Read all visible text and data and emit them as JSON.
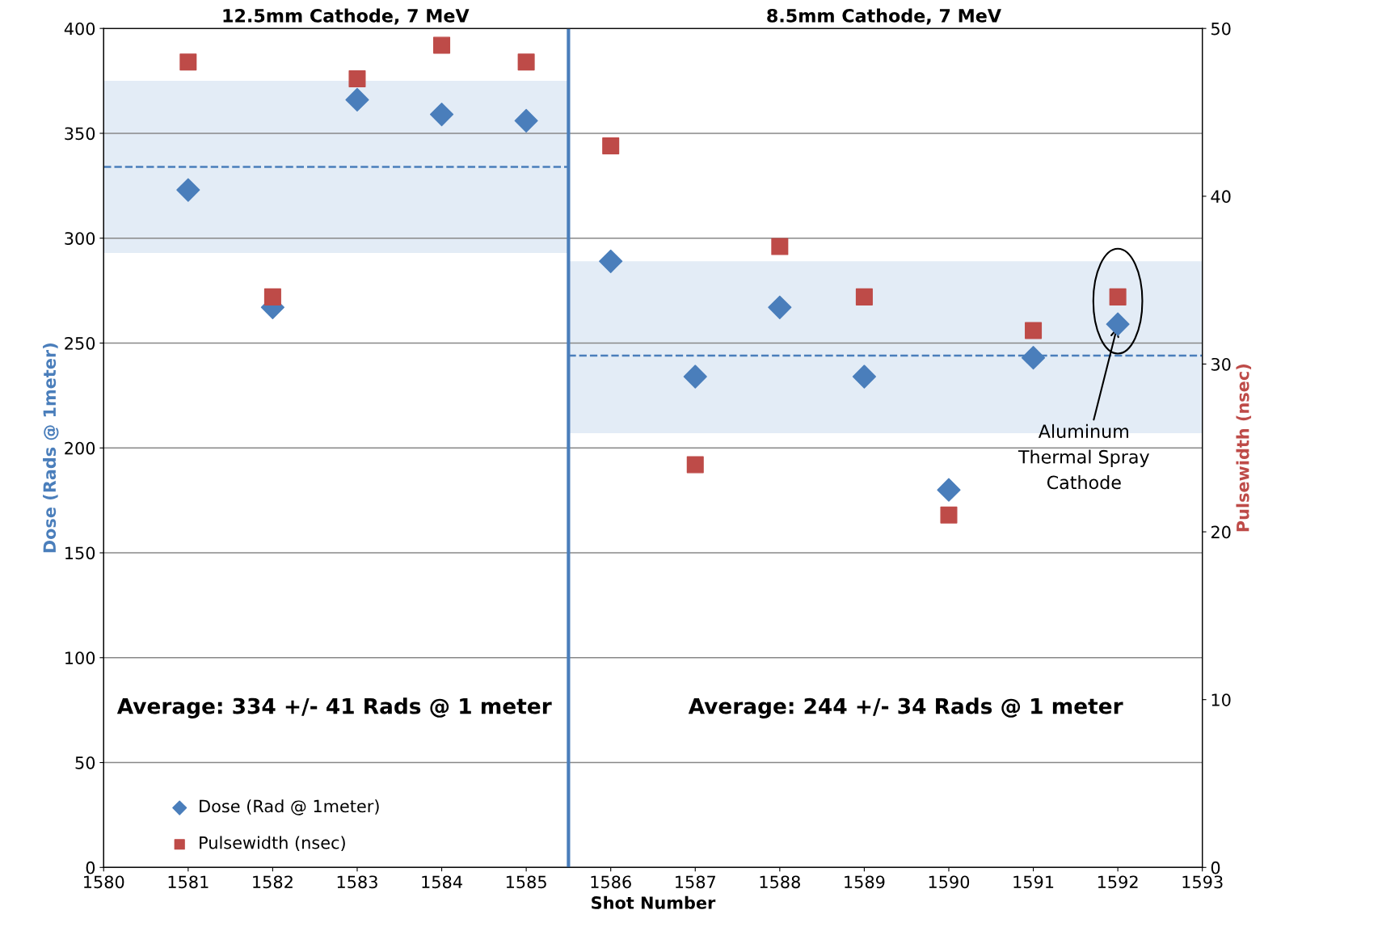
{
  "chart_data": {
    "type": "scatter",
    "xlabel": "Shot Number",
    "ylabel": "Dose (Rads @ 1meter)",
    "y2label": "Pulsewidth (nsec)",
    "x": [
      1581,
      1582,
      1583,
      1584,
      1585,
      1586,
      1587,
      1588,
      1589,
      1590,
      1591,
      1592
    ],
    "series": [
      {
        "name": "Dose (Rad @ 1meter)",
        "color": "#4a7ebb",
        "marker": "diamond",
        "values": [
          323,
          267,
          366,
          359,
          356,
          289,
          234,
          267,
          234,
          180,
          243,
          259
        ]
      },
      {
        "name": "Pulsewidth (nsec)",
        "color": "#be4b48",
        "marker": "square",
        "axis": "y2",
        "values": [
          48,
          34,
          47,
          49,
          48,
          43,
          24,
          37,
          34,
          21,
          32,
          34
        ]
      },
      {
        "type": "line",
        "color": "#4a7ebb",
        "line_style": "dashed",
        "x": [
          1580,
          1585.5
        ],
        "values": [
          334,
          334
        ],
        "lower": [
          293,
          293
        ],
        "upper": [
          375,
          375
        ]
      },
      {
        "type": "line",
        "color": "#4a7ebb",
        "line_style": "dashed",
        "x": [
          1585.5,
          1593
        ],
        "values": [
          244,
          244
        ],
        "lower": [
          207,
          207
        ],
        "upper": [
          289,
          289
        ]
      }
    ],
    "ref_lines": [
      {
        "axis": "x",
        "value": 1585.5,
        "color": "#4a7ebb",
        "line_style": "solid"
      }
    ],
    "annotations": [
      "12.5mm Cathode, 7 MeV",
      "8.5mm Cathode, 7 MeV",
      "Average: 334 +/- 41 Rads @ 1 meter",
      "Average: 244 +/- 34 Rads @ 1 meter",
      {
        "text": "Aluminum\nThermal Spray\nCathode",
        "x": 1592,
        "y": 259
      }
    ],
    "xlim": [
      1580,
      1593
    ],
    "xticks": [
      1580,
      1581,
      1582,
      1583,
      1584,
      1585,
      1586,
      1587,
      1588,
      1589,
      1590,
      1591,
      1592,
      1593
    ],
    "ylim": [
      0,
      400
    ],
    "yticks": [
      0,
      50,
      100,
      150,
      200,
      250,
      300,
      350,
      400
    ],
    "y2lim": [
      0,
      50
    ],
    "y2ticks": [
      0,
      10,
      20,
      30,
      40,
      50
    ],
    "grid": "y",
    "legend": "bottom left"
  }
}
